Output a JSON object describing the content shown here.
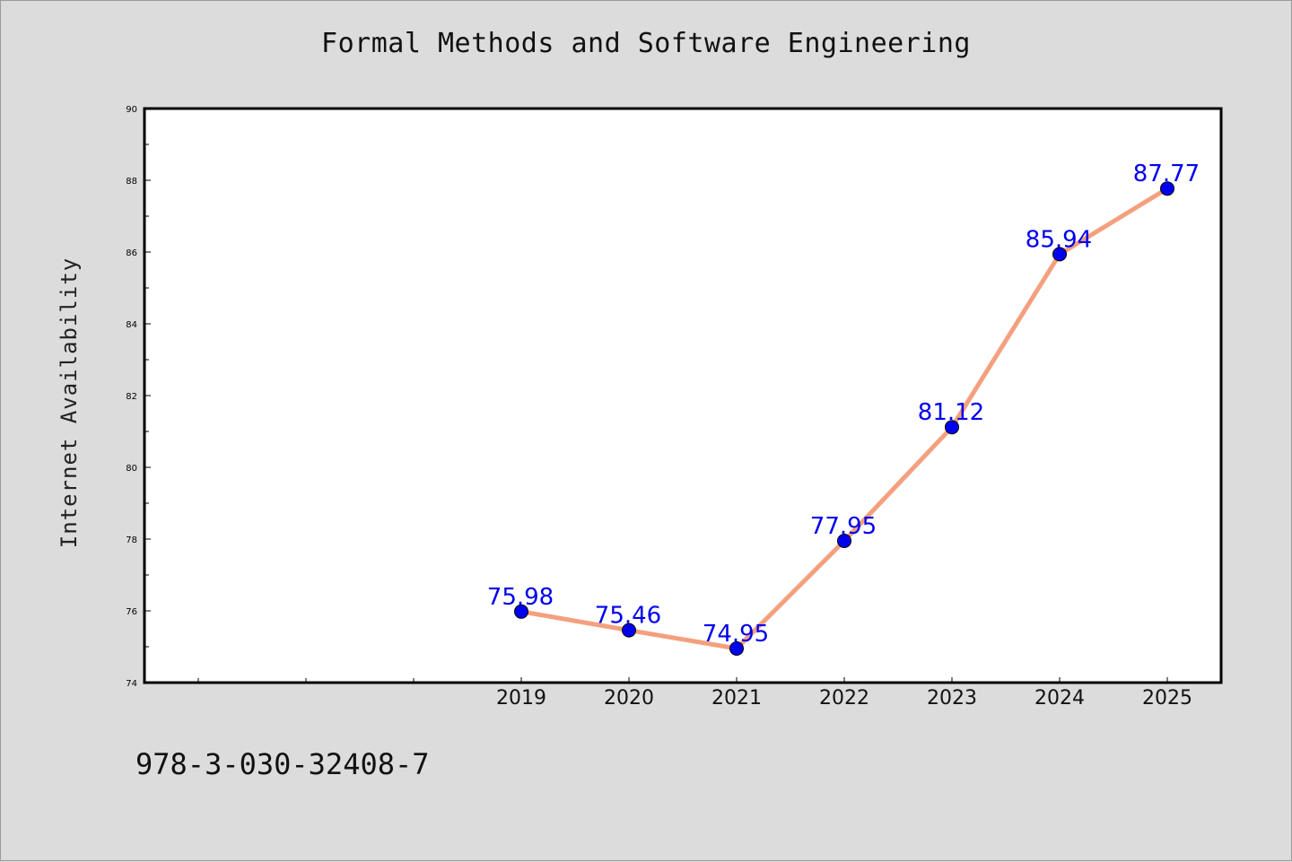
{
  "title": "Formal Methods and Software Engineering",
  "footer_code": "978-3-030-32408-7",
  "chart_data": {
    "type": "line",
    "title": "Formal Methods and Software Engineering",
    "xlabel": "",
    "ylabel": "Internet Availability",
    "categories": [
      "2019",
      "2020",
      "2021",
      "2022",
      "2023",
      "2024",
      "2025"
    ],
    "series": [
      {
        "values": [
          75.98,
          75.46,
          74.95,
          77.95,
          81.12,
          85.94,
          87.77
        ],
        "data_labels": [
          "75.98",
          "75.46",
          "74.95",
          "77.95",
          "81.12",
          "85.94",
          "87.77"
        ]
      }
    ],
    "ylim": [
      74,
      90
    ],
    "yticks": [
      "74",
      "76",
      "78",
      "80",
      "82",
      "84",
      "86",
      "88",
      "90"
    ],
    "grid": false,
    "line_color": "#f4a07e",
    "marker_color": "#0000ee",
    "label_color": "#0000ee"
  }
}
